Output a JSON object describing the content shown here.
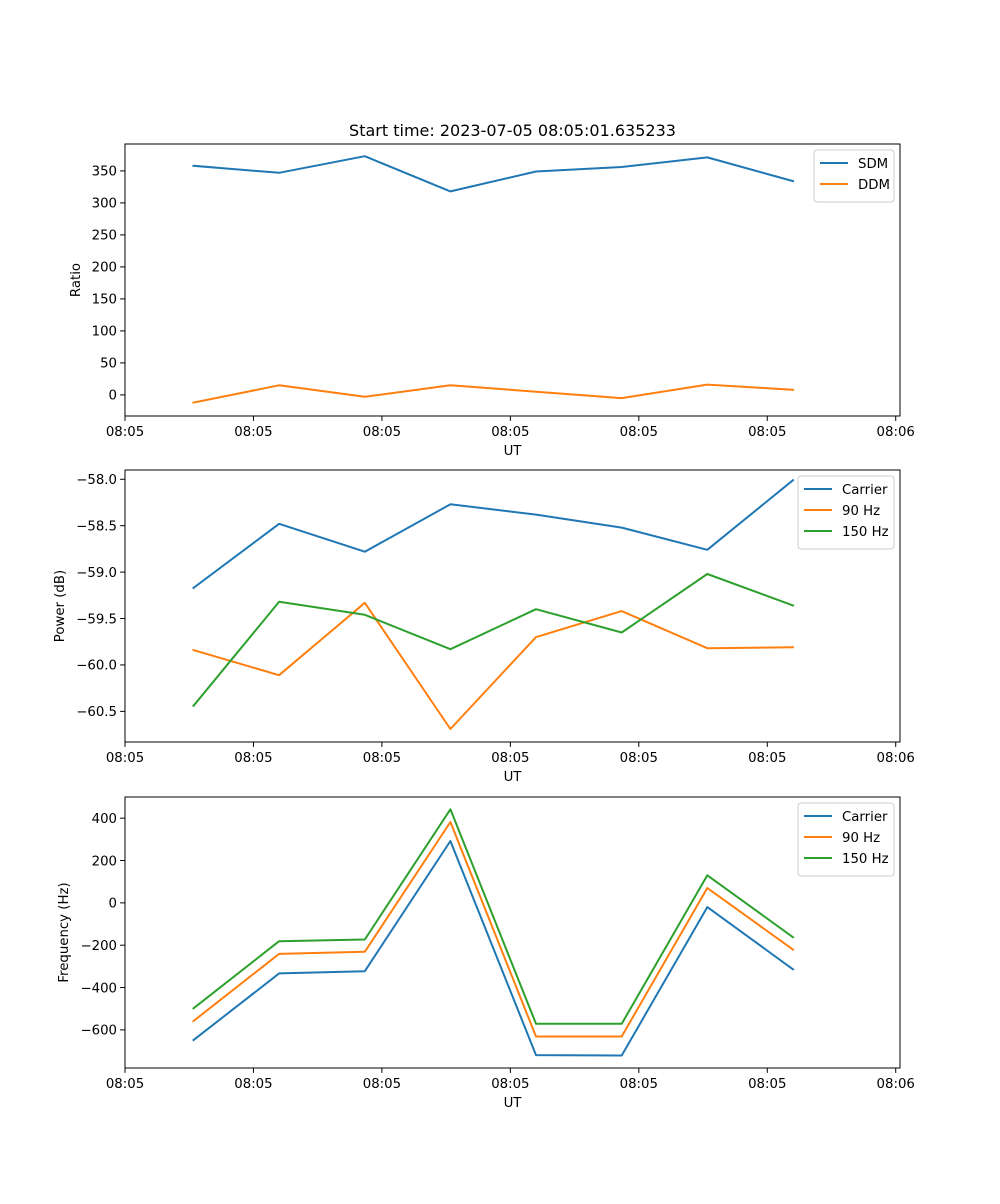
{
  "figure_title": "Start time: 2023-07-05 08:05:01.635233",
  "chart_data": [
    {
      "type": "line",
      "title": "Start time: 2023-07-05 08:05:01.635233",
      "xlabel": "UT",
      "ylabel": "Ratio",
      "x": [
        1,
        2,
        3,
        4,
        5,
        6,
        7,
        8
      ],
      "xlim": [
        0.2,
        9.25
      ],
      "x_ticks": [
        0.2,
        1.7,
        3.2,
        4.7,
        6.2,
        7.7,
        9.2
      ],
      "x_tick_labels": [
        "08:05",
        "08:05",
        "08:05",
        "08:05",
        "08:05",
        "08:05",
        "08:06"
      ],
      "ylim": [
        -33,
        392
      ],
      "y_ticks": [
        0,
        50,
        100,
        150,
        200,
        250,
        300,
        350
      ],
      "y_tick_labels": [
        "0",
        "50",
        "100",
        "150",
        "200",
        "250",
        "300",
        "350"
      ],
      "legend": "top-right",
      "series": [
        {
          "name": "SDM",
          "color": "#1f77b4",
          "values": [
            358,
            347,
            373,
            318,
            349,
            356,
            371,
            334
          ]
        },
        {
          "name": "DDM",
          "color": "#ff7f0e",
          "values": [
            -12,
            15,
            -3,
            15,
            5,
            -5,
            16,
            8
          ]
        }
      ]
    },
    {
      "type": "line",
      "title": "",
      "xlabel": "UT",
      "ylabel": "Power (dB)",
      "x": [
        1,
        2,
        3,
        4,
        5,
        6,
        7,
        8
      ],
      "xlim": [
        0.2,
        9.25
      ],
      "x_ticks": [
        0.2,
        1.7,
        3.2,
        4.7,
        6.2,
        7.7,
        9.2
      ],
      "x_tick_labels": [
        "08:05",
        "08:05",
        "08:05",
        "08:05",
        "08:05",
        "08:05",
        "08:06"
      ],
      "ylim": [
        -60.83,
        -57.9
      ],
      "y_ticks": [
        -60.5,
        -60.0,
        -59.5,
        -59.0,
        -58.5,
        -58.0
      ],
      "y_tick_labels": [
        "−60.5",
        "−60.0",
        "−59.5",
        "−59.0",
        "−58.5",
        "−58.0"
      ],
      "legend": "top-right",
      "series": [
        {
          "name": "Carrier",
          "color": "#1f77b4",
          "values": [
            -59.17,
            -58.48,
            -58.78,
            -58.27,
            -58.38,
            -58.52,
            -58.76,
            -58.01
          ]
        },
        {
          "name": "90 Hz",
          "color": "#ff7f0e",
          "values": [
            -59.84,
            -60.11,
            -59.33,
            -60.69,
            -59.7,
            -59.42,
            -59.82,
            -59.81
          ]
        },
        {
          "name": "150 Hz",
          "color": "#2ca02c",
          "values": [
            -60.44,
            -59.32,
            -59.46,
            -59.83,
            -59.4,
            -59.65,
            -59.02,
            -59.36
          ]
        }
      ]
    },
    {
      "type": "line",
      "title": "",
      "xlabel": "UT",
      "ylabel": "Frequency (Hz)",
      "x": [
        1,
        2,
        3,
        4,
        5,
        6,
        7,
        8
      ],
      "xlim": [
        0.2,
        9.25
      ],
      "x_ticks": [
        0.2,
        1.7,
        3.2,
        4.7,
        6.2,
        7.7,
        9.2
      ],
      "x_tick_labels": [
        "08:05",
        "08:05",
        "08:05",
        "08:05",
        "08:05",
        "08:05",
        "08:06"
      ],
      "ylim": [
        -780,
        500
      ],
      "y_ticks": [
        -600,
        -400,
        -200,
        0,
        200,
        400
      ],
      "y_tick_labels": [
        "−600",
        "−400",
        "−200",
        "0",
        "200",
        "400"
      ],
      "legend": "top-right",
      "series": [
        {
          "name": "Carrier",
          "color": "#1f77b4",
          "values": [
            -648,
            -333,
            -323,
            292,
            -719,
            -721,
            -20,
            -314
          ]
        },
        {
          "name": "90 Hz",
          "color": "#ff7f0e",
          "values": [
            -558,
            -241,
            -231,
            382,
            -631,
            -631,
            70,
            -221
          ]
        },
        {
          "name": "150 Hz",
          "color": "#2ca02c",
          "values": [
            -498,
            -181,
            -173,
            442,
            -571,
            -571,
            130,
            -162
          ]
        }
      ]
    }
  ]
}
